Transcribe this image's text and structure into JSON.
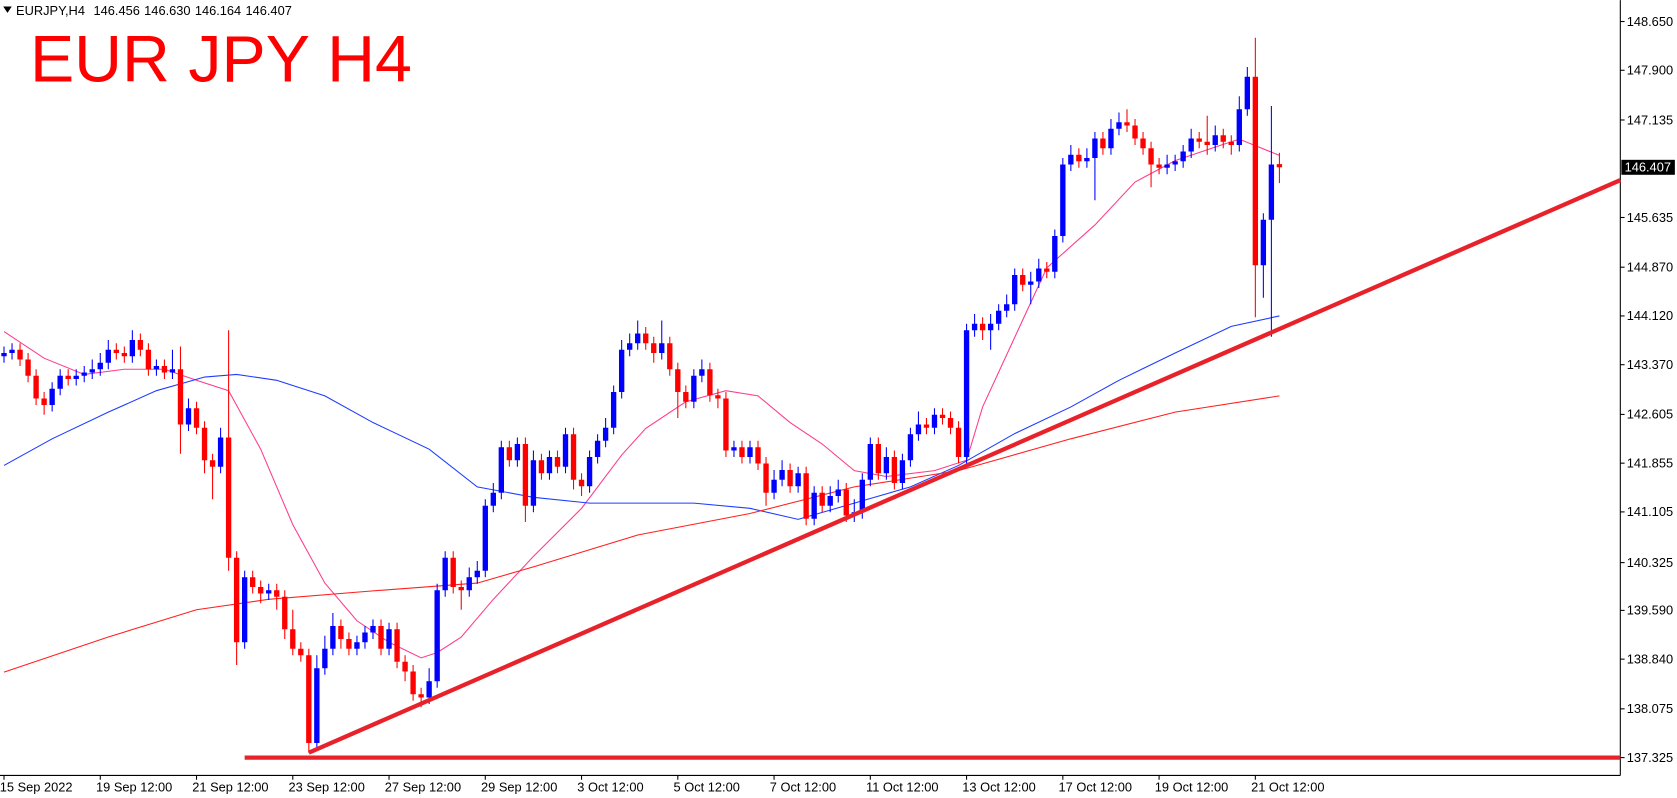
{
  "chart_data": {
    "type": "candlestick",
    "title": "EUR JPY H4",
    "header": {
      "symbol": "EURJPY,H4",
      "values": [
        146.456,
        146.63,
        146.164,
        146.407
      ],
      "value_labels": [
        "146.456",
        "146.630",
        "146.164",
        "146.407"
      ]
    },
    "up_color": "#0000ff",
    "down_color": "#ff0000",
    "open": [
      143.5,
      143.55,
      143.6,
      143.45,
      143.2,
      142.85,
      142.75,
      143.0,
      143.2,
      143.15,
      143.2,
      143.25,
      143.3,
      143.4,
      143.6,
      143.55,
      143.5,
      143.75,
      143.6,
      143.3,
      143.35,
      143.25,
      143.3,
      142.45,
      142.7,
      142.4,
      141.9,
      141.8,
      142.25,
      140.4,
      139.1,
      140.1,
      139.95,
      139.85,
      139.9,
      139.8,
      139.3,
      139.0,
      138.9,
      137.55,
      138.7,
      139.0,
      139.35,
      139.15,
      139.0,
      139.1,
      139.25,
      139.35,
      139.0,
      139.3,
      138.8,
      138.65,
      138.3,
      138.25,
      138.5,
      139.9,
      140.4,
      139.95,
      139.9,
      140.1,
      140.2,
      141.2,
      141.4,
      142.1,
      141.9,
      142.15,
      141.2,
      141.9,
      141.7,
      141.95,
      141.8,
      142.3,
      141.6,
      141.5,
      141.95,
      142.2,
      142.4,
      142.95,
      143.6,
      143.7,
      143.85,
      143.7,
      143.55,
      143.7,
      143.3,
      142.95,
      142.8,
      143.2,
      143.3,
      142.9,
      142.85,
      142.05,
      142.1,
      141.95,
      142.1,
      141.85,
      141.4,
      141.6,
      141.75,
      141.5,
      141.7,
      141.0,
      141.4,
      141.2,
      141.35,
      141.45,
      141.05,
      141.1,
      141.6,
      142.15,
      141.7,
      141.95,
      141.55,
      141.9,
      142.3,
      142.45,
      142.4,
      142.6,
      142.55,
      142.4,
      141.95,
      143.9,
      144.0,
      143.9,
      144.0,
      144.2,
      144.3,
      144.75,
      144.6,
      144.65,
      144.85,
      144.8,
      145.35,
      146.45,
      146.6,
      146.5,
      146.55,
      146.85,
      146.7,
      147.0,
      147.1,
      147.05,
      146.85,
      146.7,
      146.45,
      146.4,
      146.45,
      146.5,
      146.65,
      146.85,
      146.8,
      146.75,
      146.9,
      146.8,
      146.75,
      147.3,
      147.8,
      144.9,
      145.6,
      146.456
    ],
    "high": [
      143.65,
      143.7,
      143.7,
      143.55,
      143.3,
      142.95,
      143.1,
      143.3,
      143.3,
      143.3,
      143.35,
      143.45,
      143.55,
      143.75,
      143.7,
      143.65,
      143.9,
      143.85,
      143.7,
      143.45,
      143.45,
      143.6,
      143.65,
      142.85,
      142.8,
      142.5,
      142.0,
      142.4,
      143.9,
      140.5,
      140.2,
      140.2,
      140.05,
      140.0,
      140.0,
      139.9,
      139.6,
      139.1,
      139.0,
      138.9,
      139.2,
      139.55,
      139.45,
      139.25,
      139.2,
      139.35,
      139.45,
      139.45,
      139.4,
      139.4,
      138.9,
      138.75,
      138.4,
      138.7,
      140.0,
      140.5,
      140.5,
      140.05,
      140.25,
      140.35,
      141.3,
      141.55,
      142.2,
      142.2,
      142.25,
      142.25,
      142.05,
      142.0,
      142.05,
      142.05,
      142.4,
      142.4,
      141.7,
      142.05,
      142.3,
      142.55,
      143.05,
      143.75,
      143.85,
      144.05,
      143.95,
      143.8,
      144.05,
      143.8,
      143.4,
      143.05,
      143.3,
      143.45,
      143.4,
      143.0,
      142.95,
      142.2,
      142.2,
      142.2,
      142.2,
      141.95,
      141.75,
      141.9,
      141.85,
      141.8,
      141.8,
      141.5,
      141.5,
      141.5,
      141.6,
      141.55,
      141.3,
      141.7,
      142.25,
      142.25,
      142.1,
      142.05,
      142.0,
      142.4,
      142.65,
      142.55,
      142.7,
      142.7,
      142.65,
      142.5,
      144.0,
      144.15,
      144.1,
      144.15,
      144.3,
      144.45,
      144.85,
      144.85,
      144.8,
      145.0,
      144.95,
      145.45,
      146.55,
      146.75,
      146.7,
      146.7,
      146.95,
      146.95,
      147.15,
      147.25,
      147.3,
      147.15,
      146.95,
      146.8,
      146.55,
      146.6,
      146.6,
      146.75,
      147.0,
      146.95,
      147.2,
      147.05,
      147.0,
      146.9,
      147.5,
      147.95,
      148.4,
      145.7,
      147.35,
      146.63
    ],
    "low": [
      143.4,
      143.45,
      143.35,
      143.1,
      142.75,
      142.6,
      142.65,
      142.9,
      143.05,
      143.05,
      143.1,
      143.15,
      143.2,
      143.3,
      143.45,
      143.4,
      143.4,
      143.5,
      143.2,
      143.2,
      143.15,
      143.15,
      142.0,
      142.35,
      142.3,
      141.7,
      141.3,
      141.7,
      140.2,
      138.75,
      139.0,
      139.85,
      139.7,
      139.75,
      139.6,
      139.15,
      138.9,
      138.8,
      137.4,
      137.45,
      138.6,
      138.9,
      139.0,
      138.9,
      138.9,
      139.0,
      139.15,
      138.9,
      138.9,
      138.7,
      138.5,
      138.2,
      138.1,
      138.15,
      138.4,
      139.8,
      139.85,
      139.6,
      139.8,
      140.0,
      140.1,
      141.1,
      141.3,
      141.8,
      141.8,
      140.95,
      141.1,
      141.6,
      141.6,
      141.7,
      141.7,
      141.45,
      141.35,
      141.4,
      141.85,
      142.1,
      142.3,
      142.85,
      143.5,
      143.6,
      143.6,
      143.4,
      143.45,
      143.2,
      142.55,
      142.7,
      142.7,
      143.1,
      142.8,
      142.7,
      141.95,
      141.95,
      141.85,
      141.85,
      141.75,
      141.2,
      141.3,
      141.5,
      141.4,
      141.4,
      140.9,
      140.9,
      141.1,
      141.1,
      141.25,
      140.95,
      140.95,
      141.0,
      141.5,
      141.6,
      141.6,
      141.45,
      141.45,
      141.8,
      142.2,
      142.3,
      142.3,
      142.45,
      142.3,
      141.85,
      141.85,
      143.8,
      143.75,
      143.6,
      143.9,
      144.1,
      144.2,
      144.5,
      144.3,
      144.55,
      144.7,
      144.7,
      145.25,
      146.35,
      146.4,
      146.4,
      145.9,
      146.6,
      146.6,
      146.9,
      146.95,
      146.75,
      146.6,
      146.1,
      146.3,
      146.3,
      146.35,
      146.4,
      146.55,
      146.7,
      146.6,
      146.65,
      146.7,
      146.6,
      146.65,
      147.2,
      144.1,
      144.4,
      143.8,
      146.164
    ],
    "close": [
      143.55,
      143.6,
      143.45,
      143.2,
      142.85,
      142.75,
      143.0,
      143.2,
      143.15,
      143.2,
      143.25,
      143.3,
      143.4,
      143.6,
      143.55,
      143.5,
      143.75,
      143.6,
      143.3,
      143.35,
      143.25,
      143.3,
      142.45,
      142.7,
      142.4,
      141.9,
      141.8,
      142.25,
      140.4,
      139.1,
      140.1,
      139.95,
      139.85,
      139.9,
      139.8,
      139.3,
      139.0,
      138.9,
      137.55,
      138.7,
      139.0,
      139.35,
      139.15,
      139.0,
      139.1,
      139.25,
      139.35,
      139.0,
      139.3,
      138.8,
      138.65,
      138.3,
      138.25,
      138.5,
      139.9,
      140.4,
      139.95,
      139.9,
      140.1,
      140.2,
      141.2,
      141.4,
      142.1,
      141.9,
      142.15,
      141.2,
      141.9,
      141.7,
      141.95,
      141.8,
      142.3,
      141.6,
      141.5,
      141.95,
      142.2,
      142.4,
      142.95,
      143.6,
      143.7,
      143.85,
      143.7,
      143.55,
      143.7,
      143.3,
      142.95,
      142.8,
      143.2,
      143.3,
      142.9,
      142.85,
      142.05,
      142.1,
      141.95,
      142.1,
      141.85,
      141.4,
      141.6,
      141.75,
      141.5,
      141.7,
      141.0,
      141.4,
      141.2,
      141.35,
      141.45,
      141.05,
      141.1,
      141.6,
      142.15,
      141.7,
      141.95,
      141.55,
      141.9,
      142.3,
      142.45,
      142.4,
      142.6,
      142.55,
      142.4,
      141.95,
      143.9,
      144.0,
      143.9,
      144.0,
      144.2,
      144.3,
      144.75,
      144.6,
      144.65,
      144.85,
      144.8,
      145.35,
      146.45,
      146.6,
      146.5,
      146.55,
      146.85,
      146.7,
      147.0,
      147.1,
      147.05,
      146.85,
      146.7,
      146.45,
      146.4,
      146.45,
      146.5,
      146.65,
      146.85,
      146.8,
      146.75,
      146.9,
      146.8,
      146.75,
      147.3,
      147.8,
      144.9,
      145.6,
      146.45,
      146.407
    ],
    "series": [
      {
        "color": "#ff3c8c",
        "x": [
          0,
          5,
          10,
          15,
          20,
          24,
          28,
          32,
          36,
          40,
          44,
          48,
          52,
          54,
          57,
          61,
          66,
          72,
          77,
          80,
          85,
          90,
          94,
          98,
          102,
          106,
          110,
          116,
          120,
          122,
          126,
          130,
          136,
          141,
          146,
          152,
          154,
          159
        ],
        "values": [
          143.88,
          143.47,
          143.22,
          143.3,
          143.3,
          143.13,
          142.97,
          142.07,
          140.91,
          140.01,
          139.43,
          139.1,
          138.86,
          138.94,
          139.18,
          139.76,
          140.42,
          141.16,
          141.98,
          142.39,
          142.8,
          142.97,
          142.89,
          142.48,
          142.15,
          141.74,
          141.65,
          141.74,
          141.9,
          142.72,
          143.79,
          144.86,
          145.52,
          146.18,
          146.51,
          146.76,
          146.84,
          146.59
        ]
      },
      {
        "color": "#1e3cff",
        "x": [
          0,
          6,
          13,
          19,
          25,
          29,
          34,
          40,
          46,
          53,
          59,
          66,
          73,
          79,
          86,
          93,
          99,
          106,
          113,
          119,
          126,
          133,
          139,
          146,
          153,
          159
        ],
        "values": [
          141.82,
          142.23,
          142.64,
          142.97,
          143.18,
          143.22,
          143.13,
          142.89,
          142.48,
          142.07,
          141.49,
          141.33,
          141.24,
          141.24,
          141.24,
          141.16,
          140.99,
          141.24,
          141.49,
          141.82,
          142.31,
          142.72,
          143.13,
          143.55,
          143.96,
          144.12
        ]
      },
      {
        "color": "#ff2020",
        "x": [
          0,
          13,
          24,
          33,
          46,
          59,
          66,
          79,
          93,
          106,
          119,
          133,
          146,
          159
        ],
        "values": [
          138.64,
          139.18,
          139.6,
          139.76,
          139.89,
          140.01,
          140.26,
          140.75,
          141.08,
          141.49,
          141.74,
          142.23,
          142.64,
          142.89
        ]
      }
    ],
    "lines": [
      {
        "color": "#e8222a",
        "x": [
          38,
          201.5
        ],
        "values": [
          137.4,
          146.21
        ]
      },
      {
        "color": "#e8222a",
        "x": [
          30,
          201.5
        ],
        "values": [
          137.325,
          137.325
        ]
      }
    ],
    "last_price": 146.407,
    "xlim": [
      -0.5,
      201.5
    ],
    "xticks": [
      {
        "value": 0,
        "label": "15 Sep 2022"
      },
      {
        "value": 12,
        "label": "19 Sep 12:00"
      },
      {
        "value": 24,
        "label": "21 Sep 12:00"
      },
      {
        "value": 36,
        "label": "23 Sep 12:00"
      },
      {
        "value": 48,
        "label": "27 Sep 12:00"
      },
      {
        "value": 60,
        "label": "29 Sep 12:00"
      },
      {
        "value": 72,
        "label": "3 Oct 12:00"
      },
      {
        "value": 84,
        "label": "5 Oct 12:00"
      },
      {
        "value": 96,
        "label": "7 Oct 12:00"
      },
      {
        "value": 108,
        "label": "11 Oct 12:00"
      },
      {
        "value": 120,
        "label": "13 Oct 12:00"
      },
      {
        "value": 132,
        "label": "17 Oct 12:00"
      },
      {
        "value": 144,
        "label": "19 Oct 12:00"
      },
      {
        "value": 156,
        "label": "21 Oct 12:00"
      }
    ],
    "ylim": [
      137.05,
      148.98
    ],
    "yticks": [
      {
        "value": 148.65,
        "label": "148.650"
      },
      {
        "value": 147.9,
        "label": "147.900"
      },
      147.135,
      145.635,
      {
        "value": 144.87,
        "label": "144.870"
      },
      {
        "value": 144.12,
        "label": "144.120"
      },
      {
        "value": 143.37,
        "label": "143.370"
      },
      142.605,
      141.855,
      141.105,
      140.325,
      {
        "value": 139.59,
        "label": "139.590"
      },
      {
        "value": 138.84,
        "label": "138.840"
      },
      138.075,
      137.325
    ],
    "grid": false
  }
}
